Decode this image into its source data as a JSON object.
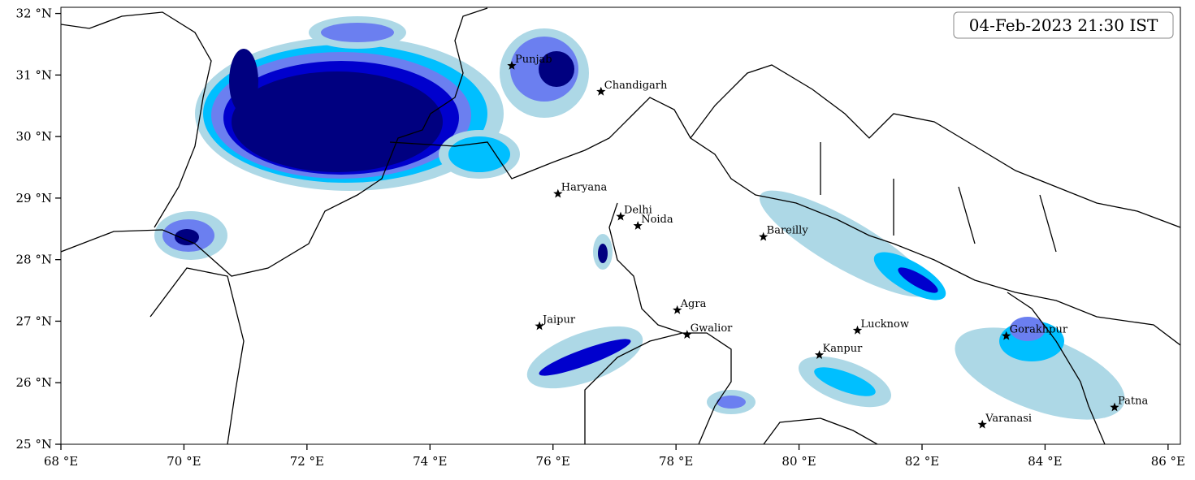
{
  "title": "04-Feb-2023 21:30 IST",
  "axes": {
    "xlim": [
      68,
      86.2
    ],
    "ylim": [
      25,
      32.1
    ],
    "xticks": [
      {
        "value": 68,
        "label": "68 °E"
      },
      {
        "value": 70,
        "label": "70 °E"
      },
      {
        "value": 72,
        "label": "72 °E"
      },
      {
        "value": 74,
        "label": "74 °E"
      },
      {
        "value": 76,
        "label": "76 °E"
      },
      {
        "value": 78,
        "label": "78 °E"
      },
      {
        "value": 80,
        "label": "80 °E"
      },
      {
        "value": 82,
        "label": "82 °E"
      },
      {
        "value": 84,
        "label": "84 °E"
      },
      {
        "value": 86,
        "label": "86 °E"
      }
    ],
    "yticks": [
      {
        "value": 25,
        "label": "25 °N"
      },
      {
        "value": 26,
        "label": "26 °N"
      },
      {
        "value": 27,
        "label": "27 °N"
      },
      {
        "value": 28,
        "label": "28 °N"
      },
      {
        "value": 29,
        "label": "29 °N"
      },
      {
        "value": 30,
        "label": "30 °N"
      },
      {
        "value": 31,
        "label": "31 °N"
      },
      {
        "value": 32,
        "label": "32 °N"
      }
    ]
  },
  "cities": [
    "Punjab",
    "Chandigarh",
    "Haryana",
    "Delhi",
    "Noida",
    "Bareilly",
    "Agra",
    "Jaipur",
    "Gwalior",
    "Lucknow",
    "Kanpur",
    "Gorakhpur",
    "Varanasi",
    "Patna"
  ]
}
